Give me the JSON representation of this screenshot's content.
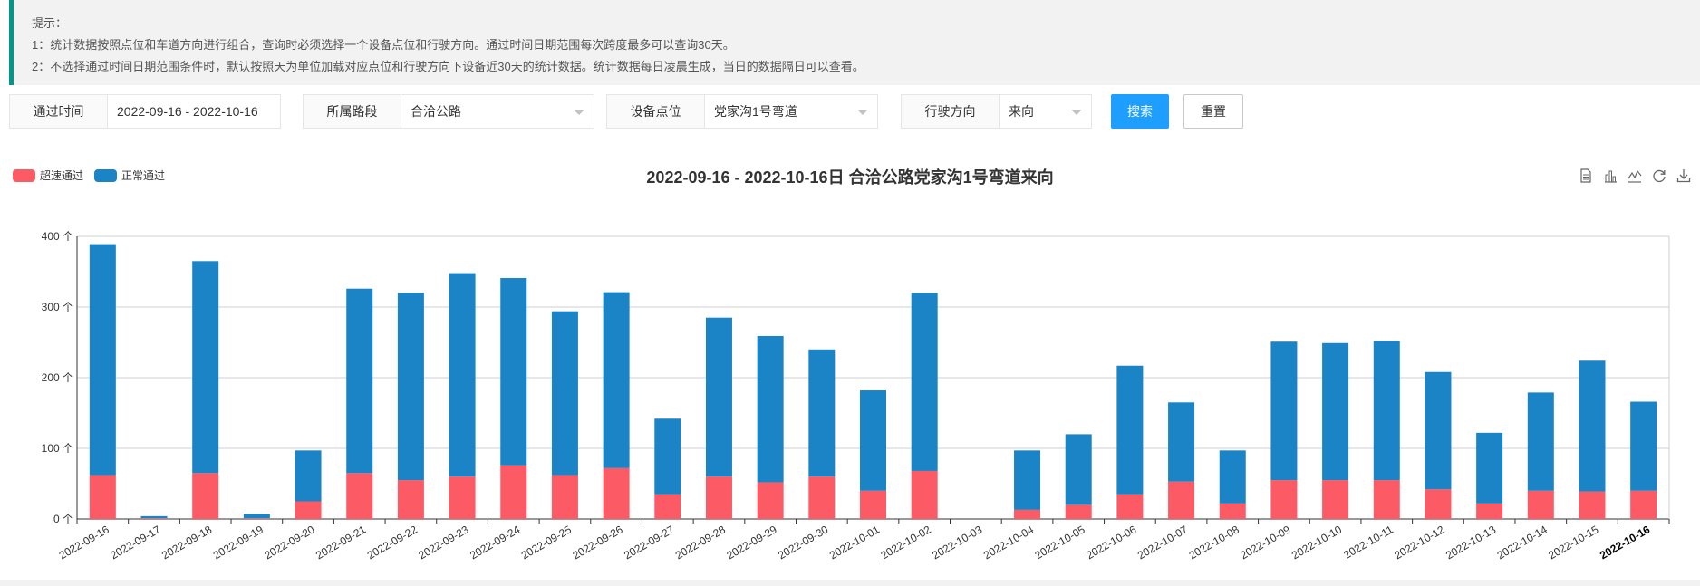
{
  "tips": {
    "title": "提示：",
    "line1": "1：统计数据按照点位和车道方向进行组合，查询时必须选择一个设备点位和行驶方向。通过时间日期范围每次跨度最多可以查询30天。",
    "line2": "2：不选择通过时间日期范围条件时，默认按照天为单位加载对应点位和行驶方向下设备近30天的统计数据。统计数据每日凌晨生成，当日的数据隔日可以查看。"
  },
  "filters": {
    "time_label": "通过时间",
    "time_value": "2022-09-16 - 2022-10-16",
    "road_label": "所属路段",
    "road_value": "合洽公路",
    "device_label": "设备点位",
    "device_value": "党家沟1号弯道",
    "direction_label": "行驶方向",
    "direction_value": "来向",
    "search_label": "搜索",
    "reset_label": "重置"
  },
  "colors": {
    "overspeed": "#fc5a64",
    "normal": "#1b84c6",
    "accent": "#1e9fff",
    "tip_border": "#009688"
  },
  "toolbox": [
    "data-view-icon",
    "bar-chart-icon",
    "line-chart-icon",
    "refresh-icon",
    "download-icon"
  ],
  "chart_data": {
    "type": "bar",
    "stacked": true,
    "title": "2022-09-16 - 2022-10-16日 合洽公路党家沟1号弯道来向",
    "legend_position": "top-left",
    "y_unit": "个",
    "ylim": [
      0,
      400
    ],
    "yticks": [
      0,
      100,
      200,
      300,
      400
    ],
    "grid": true,
    "categories": [
      "2022-09-16",
      "2022-09-17",
      "2022-09-18",
      "2022-09-19",
      "2022-09-20",
      "2022-09-21",
      "2022-09-22",
      "2022-09-23",
      "2022-09-24",
      "2022-09-25",
      "2022-09-26",
      "2022-09-27",
      "2022-09-28",
      "2022-09-29",
      "2022-09-30",
      "2022-10-01",
      "2022-10-02",
      "2022-10-03",
      "2022-10-04",
      "2022-10-05",
      "2022-10-06",
      "2022-10-07",
      "2022-10-08",
      "2022-10-09",
      "2022-10-10",
      "2022-10-11",
      "2022-10-12",
      "2022-10-13",
      "2022-10-14",
      "2022-10-15",
      "2022-10-16"
    ],
    "series": [
      {
        "name": "超速通过",
        "values": [
          62,
          1,
          65,
          1,
          25,
          65,
          55,
          60,
          76,
          62,
          72,
          35,
          60,
          52,
          60,
          40,
          68,
          0,
          13,
          20,
          35,
          53,
          22,
          55,
          55,
          55,
          42,
          22,
          40,
          39,
          40
        ]
      },
      {
        "name": "正常通过",
        "values": [
          327,
          3,
          300,
          6,
          72,
          261,
          265,
          288,
          265,
          232,
          249,
          107,
          225,
          207,
          180,
          142,
          252,
          0,
          84,
          100,
          182,
          112,
          75,
          196,
          194,
          197,
          166,
          100,
          139,
          185,
          126
        ]
      }
    ]
  }
}
